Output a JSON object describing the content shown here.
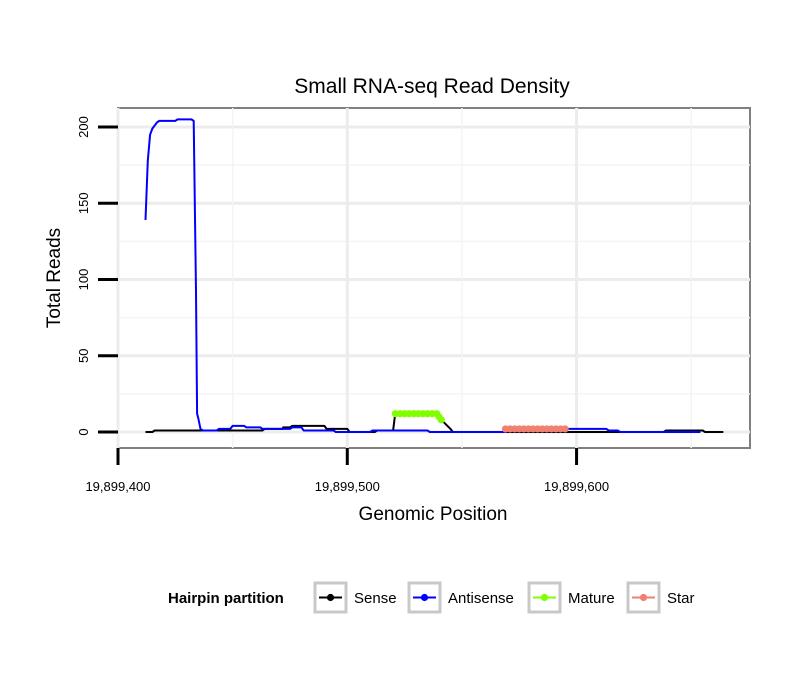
{
  "chart_data": {
    "type": "line",
    "title": "Small RNA-seq Read Density",
    "xlabel": "Genomic Position",
    "ylabel": "Total Reads",
    "xlim": [
      19899400,
      19899680
    ],
    "ylim": [
      -10,
      215
    ],
    "x_ticks": [
      19899400,
      19899500,
      19899600
    ],
    "x_tick_labels": [
      "19,899,400",
      "19,899,500",
      "19,899,600"
    ],
    "y_ticks": [
      0,
      50,
      100,
      150,
      200
    ],
    "y_tick_labels": [
      "0",
      "50",
      "100",
      "150",
      "200"
    ],
    "grid": true,
    "legend": {
      "title": "Hairpin partition",
      "position": "bottom",
      "entries": [
        {
          "name": "Sense",
          "color": "#000000"
        },
        {
          "name": "Antisense",
          "color": "#0000ff"
        },
        {
          "name": "Mature",
          "color": "#7fff00"
        },
        {
          "name": "Star",
          "color": "#f08070"
        }
      ]
    },
    "series": [
      {
        "name": "Sense",
        "color": "#000000",
        "x": [
          19899412,
          19899415,
          19899416,
          19899437,
          19899437,
          19899463,
          19899464,
          19899472,
          19899472,
          19899475,
          19899476,
          19899490,
          19899491,
          19899500,
          19899501,
          19899512,
          19899513,
          19899520,
          19899521,
          19899539,
          19899541,
          19899545,
          19899546,
          19899568,
          19899569,
          19899638,
          19899639,
          19899655,
          19899656,
          19899664
        ],
        "values": [
          0,
          0,
          1,
          1,
          1,
          1,
          2,
          2,
          3,
          3,
          4,
          4,
          2,
          2,
          0,
          0,
          1,
          1,
          13,
          13,
          8,
          2,
          0,
          0,
          0,
          0,
          1,
          1,
          0,
          0
        ]
      },
      {
        "name": "Antisense",
        "color": "#0000ff",
        "x": [
          19899412,
          19899413,
          19899414,
          19899415,
          19899416,
          19899417,
          19899418,
          19899419,
          19899420,
          19899425,
          19899426,
          19899432,
          19899433,
          19899434,
          19899434.5,
          19899435,
          19899436,
          19899437,
          19899443,
          19899444,
          19899449,
          19899450,
          19899455,
          19899456,
          19899462,
          19899463,
          19899475,
          19899476,
          19899480,
          19899481,
          19899494,
          19899495,
          19899510,
          19899511,
          19899523,
          19899524,
          19899535,
          19899536,
          19899569,
          19899570,
          19899595,
          19899596,
          19899613,
          19899614,
          19899618,
          19899619,
          19899638,
          19899639,
          19899654
        ],
        "values": [
          139,
          178,
          195,
          199,
          201,
          203,
          204,
          204,
          204,
          204,
          205,
          205,
          204,
          92,
          12,
          9,
          2,
          1,
          1,
          2,
          2,
          4,
          4,
          3,
          3,
          2,
          2,
          3,
          3,
          1,
          1,
          0,
          0,
          1,
          1,
          1,
          1,
          0,
          0,
          1,
          1,
          2,
          2,
          1,
          1,
          0,
          0,
          0,
          0
        ]
      },
      {
        "name": "Mature",
        "color": "#7fff00",
        "x": [
          19899521,
          19899523,
          19899525,
          19899527,
          19899529,
          19899531,
          19899533,
          19899535,
          19899537,
          19899539,
          19899540,
          19899541
        ],
        "values": [
          12,
          12,
          12,
          12,
          12,
          12,
          12,
          12,
          12,
          12,
          10,
          8
        ]
      },
      {
        "name": "Star",
        "color": "#f08070",
        "x": [
          19899569,
          19899571,
          19899573,
          19899575,
          19899577,
          19899579,
          19899581,
          19899583,
          19899585,
          19899587,
          19899589,
          19899591,
          19899593,
          19899595
        ],
        "values": [
          2,
          2,
          2,
          2,
          2,
          2,
          2,
          2,
          2,
          2,
          2,
          2,
          2,
          2
        ]
      }
    ]
  }
}
